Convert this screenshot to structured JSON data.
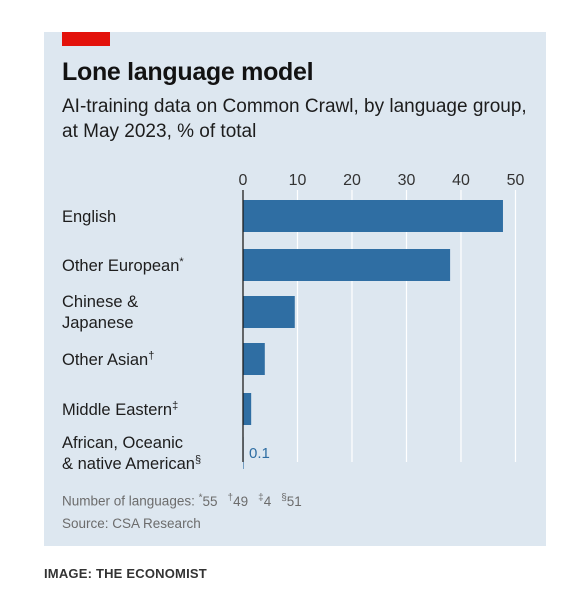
{
  "credit": "IMAGE: THE ECONOMIST",
  "colors": {
    "background": "#dde7f0",
    "bar": "#2f6ea3",
    "accent_tag": "#e3120b",
    "gridline": "#ffffff"
  },
  "chart_data": {
    "type": "bar",
    "orientation": "horizontal",
    "title": "Lone language model",
    "subtitle": "AI-training data on Common Crawl, by language group, at May 2023, % of total",
    "xlim": [
      0,
      50
    ],
    "xticks": [
      0,
      10,
      20,
      30,
      40,
      50
    ],
    "grid": true,
    "categories": [
      {
        "lines": [
          "English"
        ],
        "note": ""
      },
      {
        "lines": [
          "Other European"
        ],
        "note": "*"
      },
      {
        "lines": [
          "Chinese &",
          "Japanese"
        ],
        "note": ""
      },
      {
        "lines": [
          "Other Asian"
        ],
        "note": "†"
      },
      {
        "lines": [
          "Middle Eastern"
        ],
        "note": "‡"
      },
      {
        "lines": [
          "African, Oceanic",
          "& native American"
        ],
        "note": "§"
      }
    ],
    "values": [
      47.7,
      38,
      9.5,
      4,
      1.5,
      0.1
    ],
    "data_labels": [
      "",
      "",
      "",
      "",
      "",
      "0.1"
    ],
    "footnote": {
      "prefix": "Number of languages: ",
      "items": [
        {
          "mark": "*",
          "count": "55"
        },
        {
          "mark": "†",
          "count": "49"
        },
        {
          "mark": "‡",
          "count": "4"
        },
        {
          "mark": "§",
          "count": "51"
        }
      ]
    },
    "source": "Source: CSA Research"
  }
}
